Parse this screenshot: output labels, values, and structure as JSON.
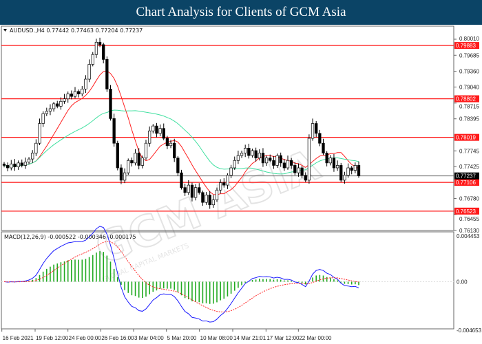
{
  "header": {
    "title": "Chart Analysis for Clients of GCM Asia"
  },
  "watermark": {
    "text": "GCM ASIA",
    "subtext": "GLOBAL CAPITAL MARKETS"
  },
  "chart_data": [
    {
      "type": "candlestick",
      "symbol_info": "AUDUSD.,H4  0.77442 0.77463 0.77204 0.77237",
      "ylim": [
        0.7613,
        0.8001
      ],
      "y_ticks": [
        "0.80010",
        "0.79685",
        "0.79360",
        "0.79040",
        "0.78715",
        "0.78395",
        "0.77745",
        "0.77425",
        "0.76780",
        "0.76455",
        "0.76130"
      ],
      "x_ticks": [
        "16 Feb 2021",
        "19 Feb 12:00",
        "24 Feb 00:00",
        "26 Feb 16:00",
        "3 Mar 04:00",
        "5 Mar 20:00",
        "10 Mar 08:00",
        "14 Mar 21:01",
        "17 Mar 12:00",
        "22 Mar 00:00"
      ],
      "current_price": "0.77237",
      "levels": [
        "0.79883",
        "0.78802",
        "0.78019",
        "0.77106",
        "0.76523"
      ],
      "moving_averages": [
        {
          "color": "#ff2020",
          "period": 10
        },
        {
          "color": "#40e0a0",
          "period": 30
        }
      ],
      "colors": {
        "bull": "#ffffff",
        "bear": "#000000",
        "level": "#ff1a1a"
      },
      "closes": [
        0.7745,
        0.774,
        0.7748,
        0.7742,
        0.775,
        0.7745,
        0.7752,
        0.7758,
        0.777,
        0.779,
        0.783,
        0.785,
        0.7855,
        0.786,
        0.787,
        0.7865,
        0.7875,
        0.788,
        0.789,
        0.7885,
        0.7895,
        0.789,
        0.79,
        0.792,
        0.795,
        0.797,
        0.7995,
        0.799,
        0.796,
        0.79,
        0.784,
        0.779,
        0.774,
        0.7715,
        0.773,
        0.7755,
        0.775,
        0.777,
        0.7745,
        0.776,
        0.779,
        0.7815,
        0.7825,
        0.781,
        0.782,
        0.78,
        0.7785,
        0.779,
        0.776,
        0.773,
        0.77,
        0.769,
        0.7705,
        0.768,
        0.77,
        0.769,
        0.767,
        0.7685,
        0.7665,
        0.7675,
        0.7695,
        0.771,
        0.7705,
        0.7725,
        0.774,
        0.7755,
        0.7765,
        0.777,
        0.778,
        0.7765,
        0.7775,
        0.776,
        0.777,
        0.775,
        0.776,
        0.7755,
        0.7745,
        0.7765,
        0.775,
        0.774,
        0.7755,
        0.7745,
        0.773,
        0.774,
        0.7725,
        0.7715,
        0.78,
        0.783,
        0.781,
        0.779,
        0.777,
        0.775,
        0.776,
        0.774,
        0.7745,
        0.7715,
        0.7725,
        0.774,
        0.7735,
        0.7745,
        0.7724
      ]
    },
    {
      "type": "macd",
      "label": "MACD(12,26,9) -0.000522 -0.000346 -0.000175",
      "ylim": [
        -0.004653,
        0.004453
      ],
      "y_ticks": [
        "0.004453",
        "0.00",
        "-0.004653"
      ],
      "colors": {
        "histogram": "#22aa22",
        "macd": "#1a1aff",
        "signal": "#ff2020"
      }
    }
  ]
}
